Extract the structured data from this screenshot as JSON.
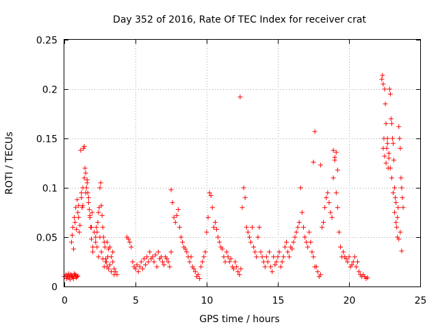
{
  "chart_data": {
    "type": "scatter",
    "title": "Day 352 of 2016, Rate Of TEC Index for receiver crat",
    "xlabel": "GPS time / hours",
    "ylabel": "ROTI / TECUs",
    "xlim": [
      0,
      25
    ],
    "ylim": [
      0,
      0.25
    ],
    "x_ticks": [
      0,
      5,
      10,
      15,
      20,
      25
    ],
    "x_tick_labels": [
      "0",
      "5",
      "10",
      "15",
      "20",
      "25"
    ],
    "y_ticks": [
      0,
      0.05,
      0.1,
      0.15,
      0.2,
      0.25
    ],
    "y_tick_labels": [
      "0",
      "0.05",
      "0.1",
      "0.15",
      "0.2",
      "0.25"
    ],
    "grid": true,
    "marker": "plus",
    "series": [
      {
        "name": "ROTI",
        "color": "#ff0000",
        "x": [
          0.0,
          0.1,
          0.15,
          0.2,
          0.25,
          0.3,
          0.35,
          0.4,
          0.45,
          0.5,
          0.55,
          0.6,
          0.65,
          0.7,
          0.75,
          0.8,
          0.85,
          0.9,
          0.95,
          0.5,
          0.55,
          0.6,
          0.65,
          0.7,
          0.75,
          0.8,
          0.85,
          0.9,
          0.95,
          1.0,
          1.05,
          1.1,
          1.15,
          1.2,
          1.25,
          1.3,
          1.35,
          1.4,
          1.45,
          1.5,
          1.55,
          1.6,
          1.65,
          1.7,
          1.75,
          1.8,
          1.85,
          1.9,
          1.95,
          2.0,
          1.0,
          1.2,
          1.3,
          1.4,
          1.5,
          1.6,
          1.7,
          1.8,
          1.9,
          2.0,
          2.1,
          2.2,
          2.3,
          2.4,
          2.5,
          2.6,
          2.7,
          2.8,
          2.9,
          3.0,
          3.1,
          3.2,
          3.3,
          3.4,
          3.5,
          3.6,
          3.7,
          2.2,
          2.25,
          2.3,
          2.35,
          2.4,
          2.45,
          2.5,
          2.55,
          2.6,
          2.65,
          2.7,
          2.75,
          2.8,
          2.85,
          2.9,
          2.95,
          3.0,
          3.05,
          3.1,
          3.2,
          3.3,
          3.4,
          3.5,
          4.4,
          4.5,
          4.6,
          4.7,
          4.8,
          4.9,
          5.0,
          5.1,
          5.2,
          5.3,
          5.4,
          5.5,
          5.6,
          5.7,
          5.8,
          5.9,
          6.0,
          6.1,
          6.2,
          6.3,
          6.4,
          6.5,
          6.6,
          6.7,
          6.8,
          6.9,
          7.0,
          7.1,
          7.2,
          7.3,
          7.4,
          7.5,
          7.5,
          7.6,
          7.7,
          7.8,
          7.9,
          8.0,
          8.1,
          8.2,
          8.3,
          8.4,
          8.5,
          8.6,
          8.7,
          8.8,
          8.9,
          9.0,
          9.1,
          9.2,
          9.3,
          9.4,
          9.5,
          9.6,
          9.7,
          9.8,
          9.9,
          10.0,
          10.1,
          10.2,
          10.3,
          10.4,
          10.5,
          10.6,
          10.7,
          10.8,
          10.9,
          11.0,
          11.1,
          11.2,
          11.3,
          11.4,
          11.5,
          11.6,
          11.7,
          11.8,
          11.9,
          12.0,
          12.1,
          12.2,
          12.3,
          12.4,
          12.5,
          12.6,
          12.7,
          12.8,
          12.9,
          13.0,
          13.1,
          13.2,
          13.3,
          13.4,
          13.5,
          13.6,
          13.7,
          13.8,
          13.9,
          14.0,
          14.1,
          14.2,
          14.3,
          14.4,
          14.5,
          14.6,
          14.7,
          14.8,
          14.9,
          15.0,
          15.1,
          15.2,
          15.3,
          15.4,
          15.5,
          15.6,
          15.7,
          15.8,
          15.9,
          16.0,
          16.1,
          16.2,
          16.3,
          16.4,
          16.5,
          16.6,
          16.7,
          16.8,
          16.9,
          17.0,
          17.1,
          17.2,
          17.3,
          17.4,
          17.5,
          17.6,
          17.7,
          17.8,
          17.9,
          18.0,
          18.1,
          18.2,
          18.3,
          18.4,
          18.5,
          18.6,
          18.7,
          18.8,
          18.9,
          19.0,
          19.1,
          19.2,
          19.3,
          19.4,
          19.5,
          19.6,
          19.7,
          19.8,
          19.9,
          20.0,
          20.1,
          20.2,
          20.3,
          20.4,
          20.5,
          20.6,
          20.7,
          20.8,
          20.9,
          21.0,
          21.1,
          21.2,
          21.3,
          12.35,
          17.6,
          17.5,
          18.0,
          18.9,
          19.0,
          19.1,
          19.2,
          22.3,
          22.35,
          22.4,
          22.45,
          22.5,
          22.55,
          22.6,
          22.65,
          22.7,
          22.75,
          22.8,
          22.85,
          22.9,
          22.95,
          23.0,
          23.05,
          23.1,
          23.15,
          23.2,
          23.25,
          23.3,
          23.35,
          23.4,
          23.45,
          23.5,
          23.55,
          23.6,
          23.65,
          23.7,
          23.75,
          23.8,
          22.4,
          22.5,
          22.6,
          22.7,
          22.8,
          22.9,
          23.0,
          23.1,
          23.2,
          23.3,
          23.4,
          23.5,
          23.6,
          23.7
        ],
        "y": [
          0.01,
          0.012,
          0.008,
          0.011,
          0.009,
          0.013,
          0.01,
          0.007,
          0.012,
          0.011,
          0.009,
          0.01,
          0.008,
          0.013,
          0.011,
          0.012,
          0.009,
          0.01,
          0.011,
          0.045,
          0.052,
          0.06,
          0.038,
          0.07,
          0.065,
          0.08,
          0.058,
          0.088,
          0.075,
          0.07,
          0.055,
          0.062,
          0.138,
          0.095,
          0.08,
          0.082,
          0.14,
          0.142,
          0.12,
          0.115,
          0.1,
          0.108,
          0.095,
          0.09,
          0.078,
          0.07,
          0.06,
          0.048,
          0.075,
          0.04,
          0.082,
          0.09,
          0.1,
          0.11,
          0.095,
          0.105,
          0.085,
          0.072,
          0.06,
          0.035,
          0.055,
          0.045,
          0.04,
          0.03,
          0.05,
          0.035,
          0.028,
          0.02,
          0.025,
          0.045,
          0.038,
          0.04,
          0.03,
          0.035,
          0.018,
          0.015,
          0.012,
          0.05,
          0.06,
          0.055,
          0.065,
          0.075,
          0.08,
          0.1,
          0.105,
          0.082,
          0.072,
          0.06,
          0.05,
          0.045,
          0.04,
          0.028,
          0.025,
          0.02,
          0.03,
          0.018,
          0.022,
          0.015,
          0.025,
          0.012,
          0.05,
          0.048,
          0.045,
          0.04,
          0.025,
          0.02,
          0.018,
          0.022,
          0.015,
          0.02,
          0.025,
          0.018,
          0.028,
          0.022,
          0.03,
          0.025,
          0.035,
          0.028,
          0.03,
          0.025,
          0.032,
          0.02,
          0.035,
          0.028,
          0.03,
          0.025,
          0.022,
          0.03,
          0.028,
          0.025,
          0.02,
          0.035,
          0.098,
          0.085,
          0.07,
          0.065,
          0.072,
          0.078,
          0.06,
          0.05,
          0.045,
          0.04,
          0.038,
          0.035,
          0.03,
          0.025,
          0.03,
          0.02,
          0.018,
          0.015,
          0.01,
          0.012,
          0.008,
          0.02,
          0.025,
          0.03,
          0.035,
          0.055,
          0.07,
          0.095,
          0.092,
          0.08,
          0.06,
          0.065,
          0.058,
          0.05,
          0.045,
          0.04,
          0.038,
          0.03,
          0.025,
          0.035,
          0.03,
          0.025,
          0.028,
          0.02,
          0.018,
          0.025,
          0.02,
          0.015,
          0.012,
          0.018,
          0.08,
          0.1,
          0.09,
          0.06,
          0.055,
          0.05,
          0.045,
          0.06,
          0.04,
          0.035,
          0.03,
          0.05,
          0.06,
          0.035,
          0.03,
          0.025,
          0.02,
          0.03,
          0.025,
          0.035,
          0.02,
          0.015,
          0.03,
          0.022,
          0.025,
          0.03,
          0.035,
          0.02,
          0.025,
          0.03,
          0.04,
          0.045,
          0.035,
          0.03,
          0.04,
          0.038,
          0.045,
          0.05,
          0.055,
          0.06,
          0.065,
          0.1,
          0.075,
          0.06,
          0.05,
          0.045,
          0.04,
          0.055,
          0.045,
          0.035,
          0.03,
          0.02,
          0.02,
          0.015,
          0.01,
          0.012,
          0.06,
          0.065,
          0.08,
          0.09,
          0.095,
          0.085,
          0.075,
          0.07,
          0.11,
          0.128,
          0.095,
          0.08,
          0.055,
          0.04,
          0.03,
          0.035,
          0.03,
          0.028,
          0.025,
          0.03,
          0.02,
          0.022,
          0.025,
          0.03,
          0.02,
          0.025,
          0.015,
          0.012,
          0.01,
          0.012,
          0.01,
          0.008,
          0.009,
          0.192,
          0.157,
          0.126,
          0.123,
          0.138,
          0.131,
          0.136,
          0.118,
          0.21,
          0.214,
          0.205,
          0.15,
          0.2,
          0.185,
          0.165,
          0.14,
          0.15,
          0.12,
          0.13,
          0.2,
          0.195,
          0.17,
          0.165,
          0.15,
          0.145,
          0.128,
          0.1,
          0.09,
          0.085,
          0.06,
          0.07,
          0.08,
          0.162,
          0.15,
          0.14,
          0.11,
          0.1,
          0.09,
          0.08,
          0.14,
          0.132,
          0.125,
          0.145,
          0.135,
          0.12,
          0.11,
          0.095,
          0.075,
          0.065,
          0.05,
          0.048,
          0.055,
          0.036
        ]
      }
    ]
  }
}
